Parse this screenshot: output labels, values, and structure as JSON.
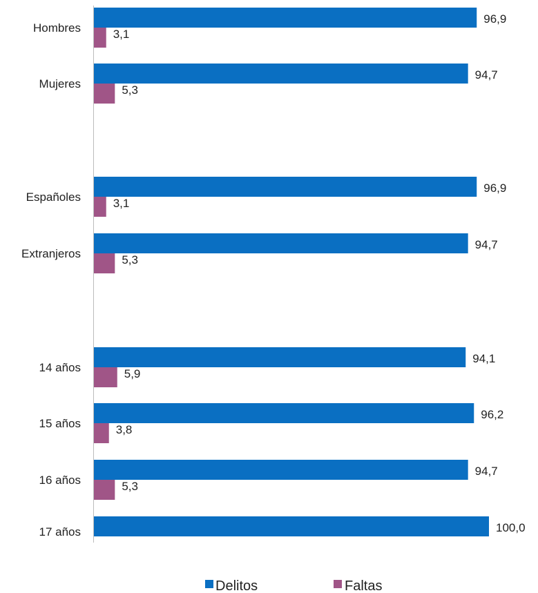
{
  "chart_data": {
    "type": "bar",
    "orientation": "horizontal",
    "categories": [
      "Hombres",
      "Mujeres",
      "Españoles",
      "Extranjeros",
      "14 años",
      "15 años",
      "16 años",
      "17 años"
    ],
    "series": [
      {
        "name": "Delitos",
        "values": [
          "96,9",
          "94,7",
          "96,9",
          "94,7",
          "94,1",
          "96,2",
          "94,7",
          "100,0"
        ]
      },
      {
        "name": "Faltas",
        "values": [
          "3,1",
          "5,3",
          "3,1",
          "5,3",
          "5,9",
          "3,8",
          "5,3",
          null
        ]
      }
    ],
    "xlim": [
      0,
      100
    ],
    "grid": false,
    "legend_position": "bottom",
    "colors": {
      "Delitos": "#0a6fc2",
      "Faltas": "#a05587"
    }
  }
}
